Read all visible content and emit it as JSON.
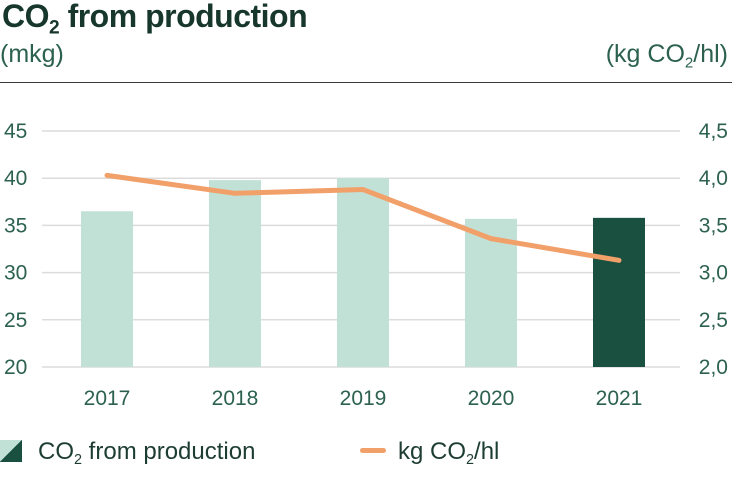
{
  "header": {
    "title_pre": "CO",
    "title_sub": "2",
    "title_post": " from production",
    "unit_left": "(mkg)",
    "unit_right_pre": "(kg CO",
    "unit_right_sub": "2",
    "unit_right_post": "/hl)"
  },
  "legend": {
    "bar_pre": "CO",
    "bar_sub": "2",
    "bar_post": " from production",
    "line_pre": "kg CO",
    "line_sub": "2",
    "line_post": "/hl"
  },
  "colors": {
    "bar_past": "#c1e1d6",
    "bar_current": "#1a5040",
    "line": "#f2a06a",
    "grid": "#dcdcdc"
  },
  "chart_data": {
    "type": "bar",
    "categories": [
      "2017",
      "2018",
      "2019",
      "2020",
      "2021"
    ],
    "series": [
      {
        "name": "CO2 from production",
        "type": "bar",
        "axis": "left",
        "values": [
          36.5,
          39.8,
          40.0,
          35.7,
          35.8
        ]
      },
      {
        "name": "kg CO2/hl",
        "type": "line",
        "axis": "right",
        "values": [
          4.03,
          3.84,
          3.88,
          3.36,
          3.13
        ]
      }
    ],
    "y_left": {
      "unit": "(mkg)",
      "ylim": [
        20,
        45
      ],
      "ticks": [
        "20",
        "25",
        "30",
        "35",
        "40",
        "45"
      ]
    },
    "y_right": {
      "unit": "(kg CO2/hl)",
      "ylim": [
        2.0,
        4.5
      ],
      "ticks": [
        "2,0",
        "2,5",
        "3,0",
        "3,5",
        "4,0",
        "4,5"
      ]
    },
    "grid": true,
    "legend_position": "bottom-left",
    "highlight_category": "2021"
  }
}
